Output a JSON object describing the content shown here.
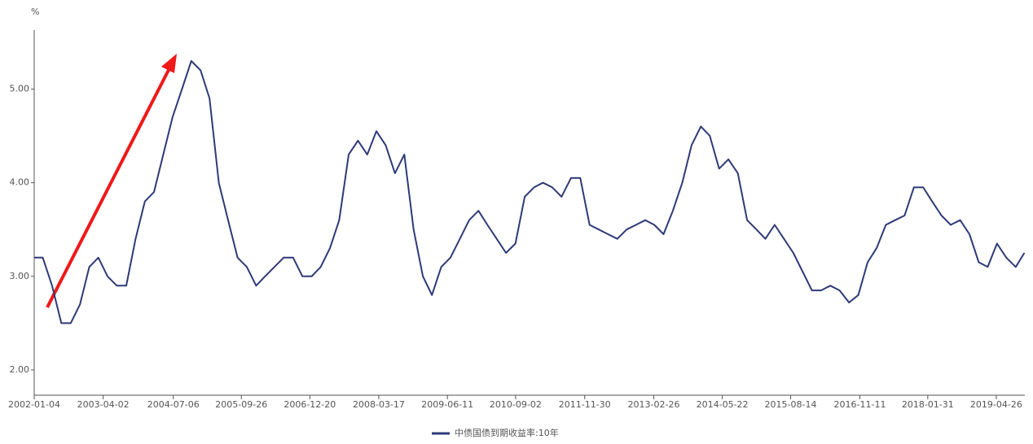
{
  "chart_data": {
    "type": "line",
    "y_unit": "%",
    "x": [
      "2002-01-04",
      "2002-03-01",
      "2002-05-01",
      "2002-07-01",
      "2002-09-01",
      "2002-11-01",
      "2003-01-01",
      "2003-03-01",
      "2003-05-01",
      "2003-07-01",
      "2003-09-01",
      "2003-11-01",
      "2004-01-01",
      "2004-03-01",
      "2004-05-01",
      "2004-07-01",
      "2004-09-01",
      "2004-11-01",
      "2005-01-01",
      "2005-03-01",
      "2005-05-01",
      "2005-07-01",
      "2005-09-01",
      "2005-11-01",
      "2006-01-01",
      "2006-03-01",
      "2006-05-01",
      "2006-07-01",
      "2006-09-01",
      "2006-11-01",
      "2007-01-01",
      "2007-03-01",
      "2007-05-01",
      "2007-07-01",
      "2007-09-01",
      "2007-11-01",
      "2008-01-01",
      "2008-03-01",
      "2008-05-01",
      "2008-07-01",
      "2008-09-01",
      "2008-11-01",
      "2009-01-01",
      "2009-03-01",
      "2009-05-01",
      "2009-07-01",
      "2009-09-01",
      "2009-11-01",
      "2010-01-01",
      "2010-03-01",
      "2010-05-01",
      "2010-07-01",
      "2010-09-01",
      "2010-11-01",
      "2011-01-01",
      "2011-03-01",
      "2011-05-01",
      "2011-07-01",
      "2011-09-01",
      "2011-11-01",
      "2012-01-01",
      "2012-03-01",
      "2012-05-01",
      "2012-07-01",
      "2012-09-01",
      "2012-11-01",
      "2013-01-01",
      "2013-03-01",
      "2013-05-01",
      "2013-07-01",
      "2013-09-01",
      "2013-11-01",
      "2014-01-01",
      "2014-03-01",
      "2014-05-01",
      "2014-07-01",
      "2014-09-01",
      "2014-11-01",
      "2015-01-01",
      "2015-03-01",
      "2015-05-01",
      "2015-07-01",
      "2015-09-01",
      "2015-11-01",
      "2016-01-01",
      "2016-03-01",
      "2016-05-01",
      "2016-07-01",
      "2016-09-01",
      "2016-11-01",
      "2017-01-01",
      "2017-03-01",
      "2017-05-01",
      "2017-07-01",
      "2017-09-01",
      "2017-11-01",
      "2018-01-01",
      "2018-03-01",
      "2018-05-01",
      "2018-07-01",
      "2018-09-01",
      "2018-11-01",
      "2019-01-01",
      "2019-03-01",
      "2019-05-01",
      "2019-07-01",
      "2019-09-01",
      "2019-10-28"
    ],
    "series": [
      {
        "name": "中债国债到期收益率:10年",
        "color": "#2e3a78",
        "values": [
          3.2,
          3.2,
          2.9,
          2.5,
          2.5,
          2.7,
          3.1,
          3.2,
          3.0,
          2.9,
          2.9,
          3.4,
          3.8,
          3.9,
          4.3,
          4.7,
          5.0,
          5.3,
          5.2,
          4.9,
          4.0,
          3.6,
          3.2,
          3.1,
          2.9,
          3.0,
          3.1,
          3.2,
          3.2,
          3.0,
          3.0,
          3.1,
          3.3,
          3.6,
          4.3,
          4.45,
          4.3,
          4.55,
          4.4,
          4.1,
          4.3,
          3.5,
          3.0,
          2.8,
          3.1,
          3.2,
          3.4,
          3.6,
          3.7,
          3.55,
          3.4,
          3.25,
          3.35,
          3.85,
          3.95,
          4.0,
          3.95,
          3.85,
          4.05,
          4.05,
          3.55,
          3.5,
          3.45,
          3.4,
          3.5,
          3.55,
          3.6,
          3.55,
          3.45,
          3.7,
          4.0,
          4.4,
          4.6,
          4.5,
          4.15,
          4.25,
          4.1,
          3.6,
          3.5,
          3.4,
          3.55,
          3.4,
          3.25,
          3.05,
          2.85,
          2.85,
          2.9,
          2.85,
          2.72,
          2.8,
          3.15,
          3.3,
          3.55,
          3.6,
          3.65,
          3.95,
          3.95,
          3.8,
          3.65,
          3.55,
          3.6,
          3.45,
          3.15,
          3.1,
          3.35,
          3.2,
          3.1,
          3.25
        ]
      }
    ],
    "xlim": [
      "2002-01-04",
      "2019-10-31"
    ],
    "xticks": [
      "2002-01-04",
      "2003-04-02",
      "2004-07-06",
      "2005-09-26",
      "2006-12-20",
      "2008-03-17",
      "2009-06-11",
      "2010-09-02",
      "2011-11-30",
      "2013-02-26",
      "2014-05-22",
      "2015-08-14",
      "2016-11-11",
      "2018-01-31",
      "2019-04-26"
    ],
    "ylim": [
      1.73,
      5.63
    ],
    "yticks": [
      {
        "value": 2,
        "label": "2.00"
      },
      {
        "value": 3,
        "label": "3.00"
      },
      {
        "value": 4,
        "label": "4.00"
      },
      {
        "value": 5,
        "label": "5.00"
      }
    ],
    "grid": false,
    "legend": "bottom"
  }
}
